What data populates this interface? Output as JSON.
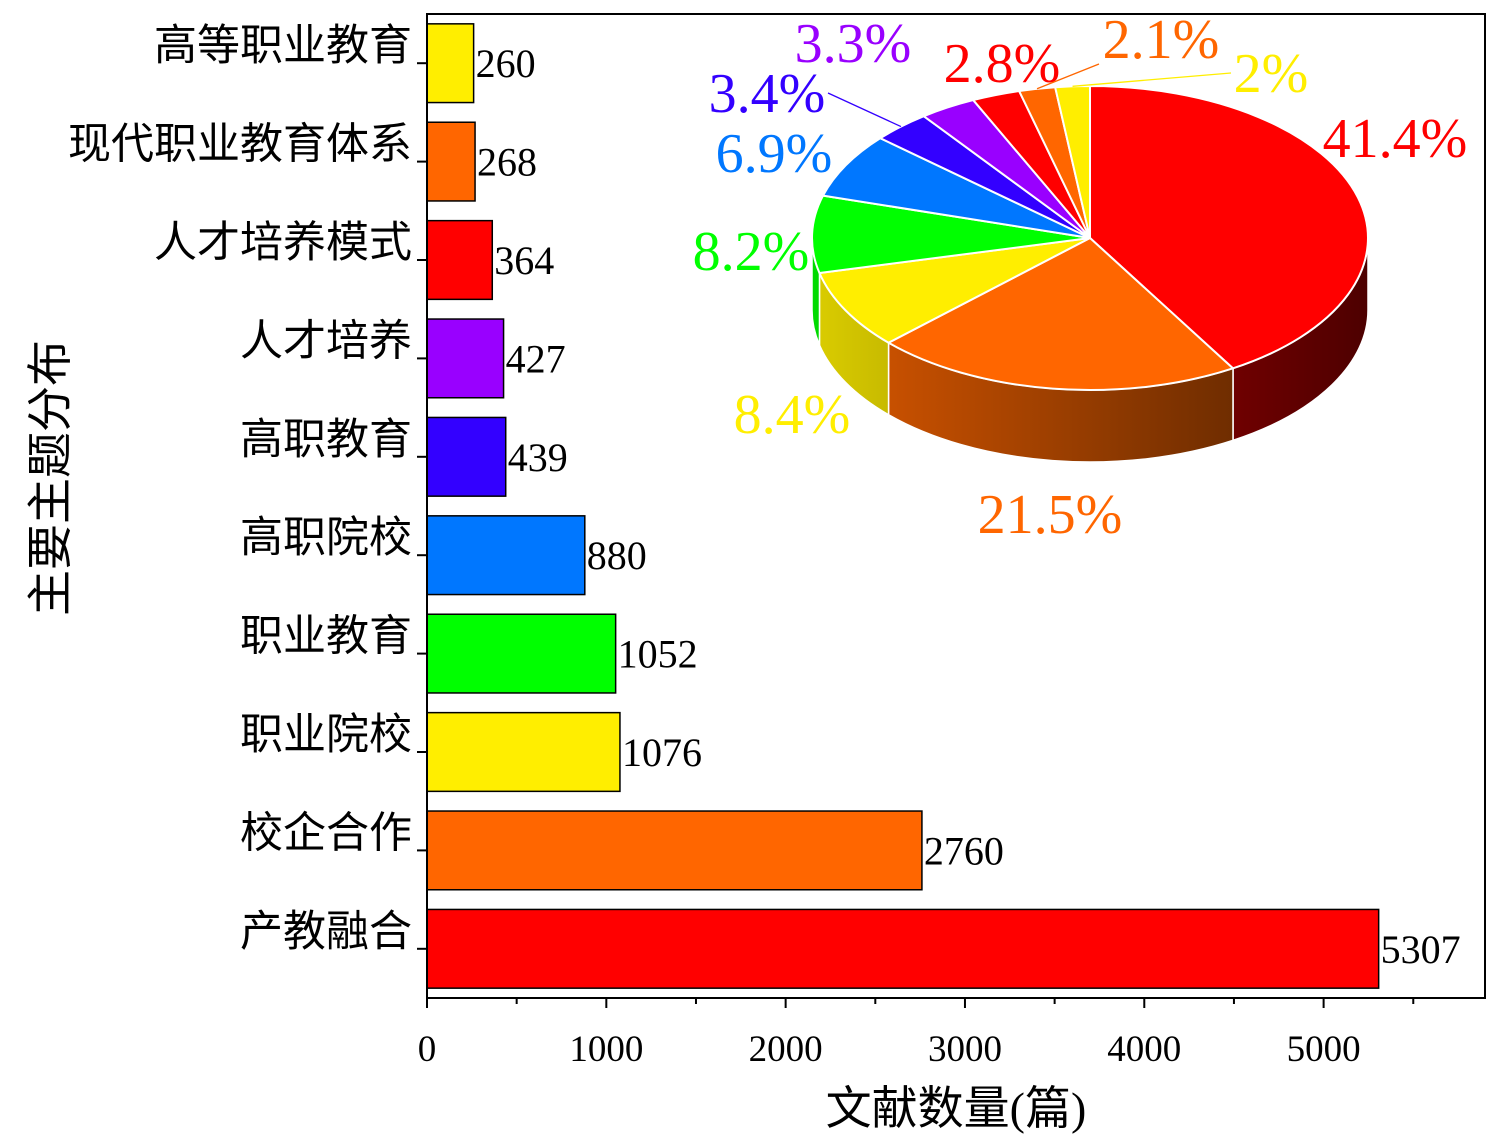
{
  "chart_data": [
    {
      "type": "bar",
      "orientation": "horizontal",
      "categories": [
        "产教融合",
        "校企合作",
        "职业院校",
        "职业教育",
        "高职院校",
        "高职教育",
        "人才培养",
        "人才培养模式",
        "现代职业教育体系",
        "高等职业教育"
      ],
      "values": [
        5307,
        2760,
        1076,
        1052,
        880,
        439,
        427,
        364,
        268,
        260
      ],
      "colors": [
        "#FF0000",
        "#FF6600",
        "#FFEE00",
        "#00FF00",
        "#0077FF",
        "#3300FF",
        "#9900FF",
        "#FF0000",
        "#FF6600",
        "#FFEE00"
      ],
      "xlabel": "文献数量(篇)",
      "ylabel": "主要主题分布",
      "xlim": [
        0,
        5900
      ],
      "xticks": [
        0,
        1000,
        2000,
        3000,
        4000,
        5000
      ],
      "grid": false
    },
    {
      "type": "pie",
      "three_d": true,
      "values": [
        41.4,
        21.5,
        8.4,
        8.2,
        6.9,
        3.4,
        3.3,
        2.8,
        2.1,
        2
      ],
      "labels": [
        "41.4%",
        "21.5%",
        "8.4%",
        "8.2%",
        "6.9%",
        "3.4%",
        "3.3%",
        "2.8%",
        "2.1%",
        "2%"
      ],
      "colors": [
        "#FF0000",
        "#FF6600",
        "#FFEE00",
        "#00FF00",
        "#0077FF",
        "#3300FF",
        "#9900FF",
        "#FF0000",
        "#FF6600",
        "#FFEE00"
      ]
    }
  ]
}
